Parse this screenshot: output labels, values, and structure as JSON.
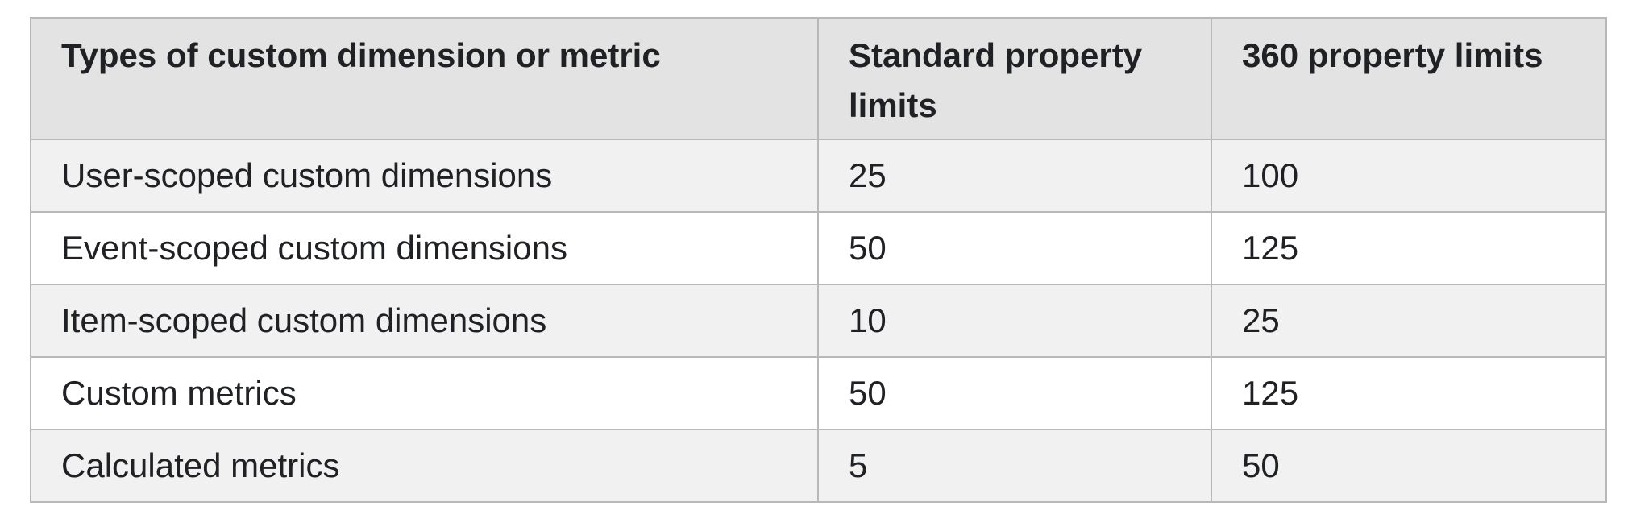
{
  "table": {
    "headers": [
      "Types of custom dimension or metric",
      "Standard property limits",
      "360 property limits"
    ],
    "rows": [
      [
        "User-scoped custom dimensions",
        "25",
        "100"
      ],
      [
        "Event-scoped custom dimensions",
        "50",
        "125"
      ],
      [
        "Item-scoped custom dimensions",
        "10",
        "25"
      ],
      [
        "Custom metrics",
        "50",
        "125"
      ],
      [
        "Calculated metrics",
        "5",
        "50"
      ]
    ]
  }
}
